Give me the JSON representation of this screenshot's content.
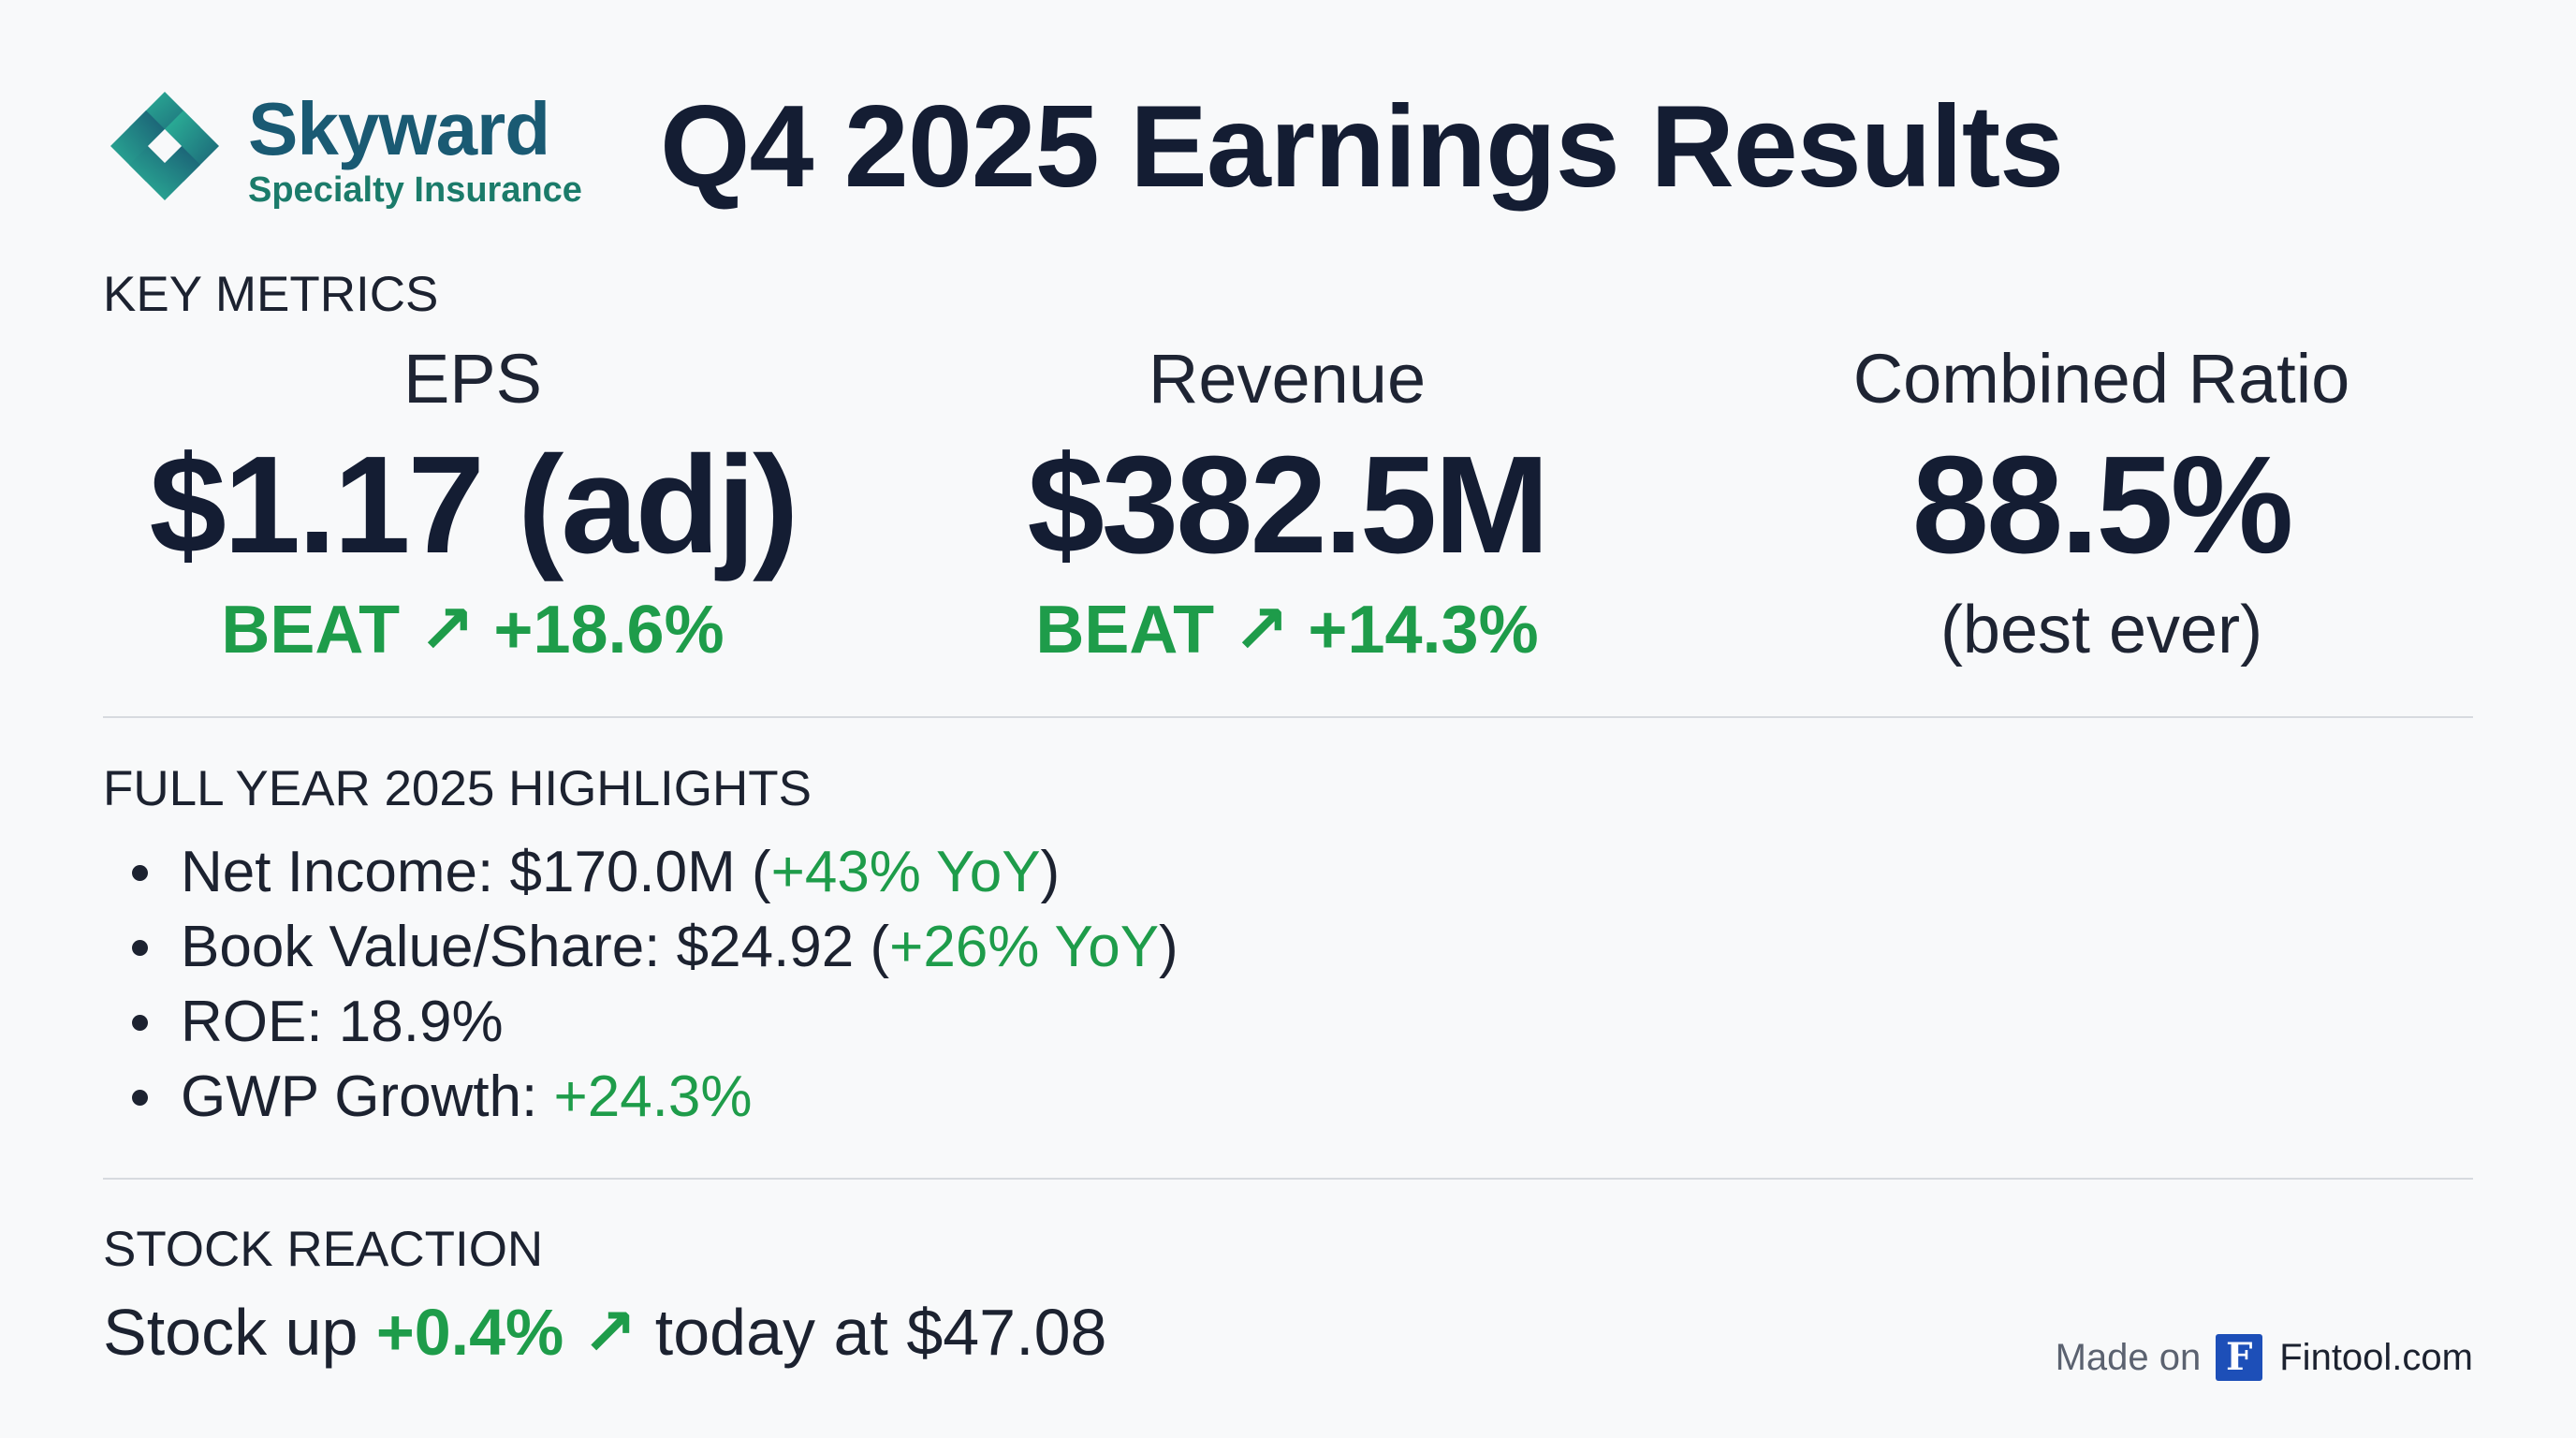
{
  "brand": {
    "name": "Skyward",
    "subtitle": "Specialty Insurance",
    "logo_icon": "interlocking-chain-icon",
    "colors": {
      "primary": "#1a5a73",
      "secondary": "#1b7b6a",
      "accent": "#21a37a"
    }
  },
  "header": {
    "title": "Q4 2025 Earnings Results"
  },
  "key_metrics": {
    "section_title": "KEY METRICS",
    "eps": {
      "label": "EPS",
      "value": "$1.17 (adj)",
      "note": "BEAT ↗ +18.6%"
    },
    "revenue": {
      "label": "Revenue",
      "value": "$382.5M",
      "note": "BEAT ↗ +14.3%"
    },
    "combined_ratio": {
      "label": "Combined Ratio",
      "value": "88.5%",
      "note": "(best ever)"
    }
  },
  "highlights": {
    "section_title": "FULL YEAR 2025 HIGHLIGHTS",
    "items": [
      {
        "prefix": "Net Income: $170.0M (",
        "change": "+43% YoY",
        "suffix": ")"
      },
      {
        "prefix": "Book Value/Share: $24.92 (",
        "change": "+26% YoY",
        "suffix": ")"
      },
      {
        "prefix": "ROE: 18.9%",
        "change": "",
        "suffix": ""
      },
      {
        "prefix": "GWP Growth: ",
        "change": "+24.3%",
        "suffix": ""
      }
    ]
  },
  "stock": {
    "section_title": "STOCK REACTION",
    "prefix": "Stock up ",
    "change": "+0.4% ↗",
    "suffix": " today at $47.08"
  },
  "footer": {
    "made_on": "Made on",
    "badge_letter": "F",
    "site": "Fintool.com",
    "badge_color": "#1d4fb8"
  },
  "colors": {
    "background": "#f8f9fa",
    "title": "#141d33",
    "positive": "#1e9c4a",
    "divider": "#d7dadf"
  }
}
